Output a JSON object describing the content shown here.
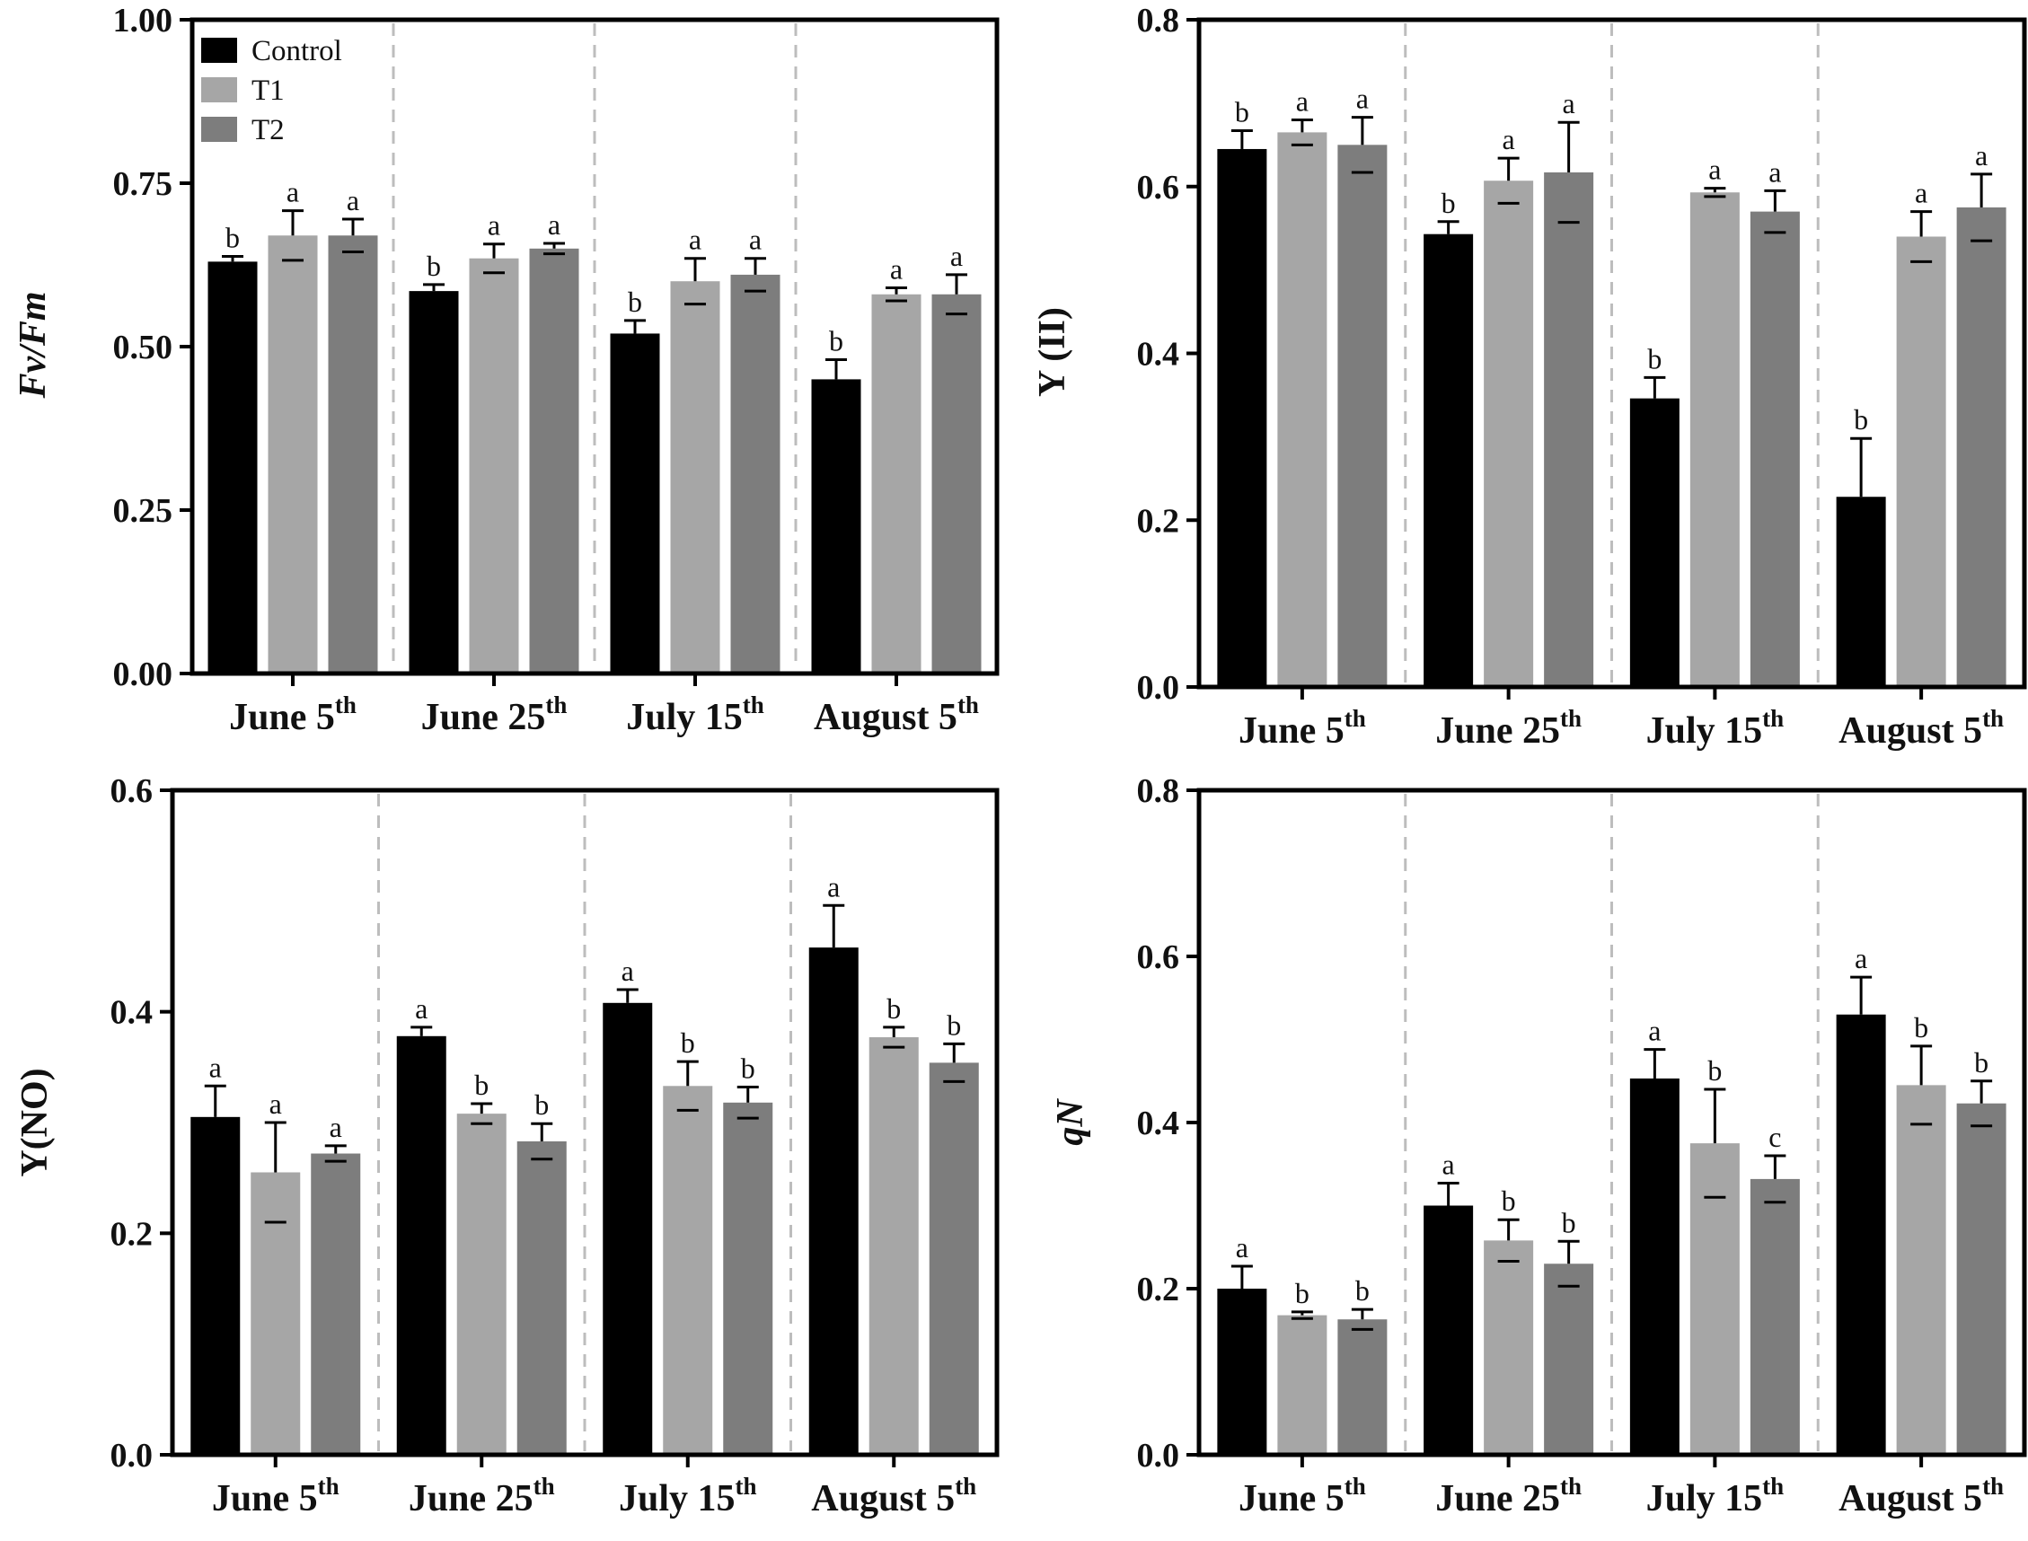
{
  "legend": {
    "entries": [
      {
        "name": "Control",
        "color": "#000000"
      },
      {
        "name": "T1",
        "color": "#a6a6a6"
      },
      {
        "name": "T2",
        "color": "#7d7d7d"
      }
    ]
  },
  "chart_data": [
    {
      "type": "bar",
      "ylabel": "Fv/Fm",
      "ylabel_italic": true,
      "ylim": [
        0,
        1.0
      ],
      "yticks": [
        "0.00",
        "0.25",
        "0.50",
        "0.75",
        "1.00"
      ],
      "categories": [
        {
          "main": "June 5",
          "sup": "th"
        },
        {
          "main": "June 25",
          "sup": "th"
        },
        {
          "main": "July 15",
          "sup": "th"
        },
        {
          "main": "August 5",
          "sup": "th"
        }
      ],
      "show_legend": true,
      "series": [
        {
          "name": "Control",
          "values": [
            0.63,
            0.585,
            0.52,
            0.45
          ],
          "errors": [
            0.008,
            0.01,
            0.02,
            0.03
          ],
          "letters": [
            "b",
            "b",
            "b",
            "b"
          ]
        },
        {
          "name": "T1",
          "values": [
            0.67,
            0.635,
            0.6,
            0.58
          ],
          "errors": [
            0.038,
            0.022,
            0.035,
            0.01
          ],
          "letters": [
            "a",
            "a",
            "a",
            "a"
          ]
        },
        {
          "name": "T2",
          "values": [
            0.67,
            0.65,
            0.61,
            0.58
          ],
          "errors": [
            0.025,
            0.008,
            0.025,
            0.03
          ],
          "letters": [
            "a",
            "a",
            "a",
            "a"
          ]
        }
      ]
    },
    {
      "type": "bar",
      "ylabel": "Y (II)",
      "ylabel_italic": false,
      "ylim": [
        0,
        0.8
      ],
      "yticks": [
        "0.0",
        "0.2",
        "0.4",
        "0.6",
        "0.8"
      ],
      "categories": [
        {
          "main": "June 5",
          "sup": "th"
        },
        {
          "main": "June 25",
          "sup": "th"
        },
        {
          "main": "July 15",
          "sup": "th"
        },
        {
          "main": "August 5",
          "sup": "th"
        }
      ],
      "show_legend": false,
      "series": [
        {
          "name": "Control",
          "values": [
            0.645,
            0.543,
            0.346,
            0.228
          ],
          "errors": [
            0.022,
            0.015,
            0.025,
            0.07
          ],
          "letters": [
            "b",
            "b",
            "b",
            "b"
          ]
        },
        {
          "name": "T1",
          "values": [
            0.665,
            0.607,
            0.593,
            0.54
          ],
          "errors": [
            0.015,
            0.027,
            0.005,
            0.03
          ],
          "letters": [
            "a",
            "a",
            "a",
            "a"
          ]
        },
        {
          "name": "T2",
          "values": [
            0.65,
            0.617,
            0.57,
            0.575
          ],
          "errors": [
            0.033,
            0.06,
            0.025,
            0.04
          ],
          "letters": [
            "a",
            "a",
            "a",
            "a"
          ]
        }
      ]
    },
    {
      "type": "bar",
      "ylabel": "Y(NO)",
      "ylabel_italic": false,
      "ylim": [
        0,
        0.6
      ],
      "yticks": [
        "0.0",
        "0.2",
        "0.4",
        "0.6"
      ],
      "categories": [
        {
          "main": "June 5",
          "sup": "th"
        },
        {
          "main": "June 25",
          "sup": "th"
        },
        {
          "main": "July 15",
          "sup": "th"
        },
        {
          "main": "August 5",
          "sup": "th"
        }
      ],
      "show_legend": false,
      "series": [
        {
          "name": "Control",
          "values": [
            0.305,
            0.378,
            0.408,
            0.458
          ],
          "errors": [
            0.028,
            0.008,
            0.012,
            0.038
          ],
          "letters": [
            "a",
            "a",
            "a",
            "a"
          ]
        },
        {
          "name": "T1",
          "values": [
            0.255,
            0.308,
            0.333,
            0.377
          ],
          "errors": [
            0.045,
            0.009,
            0.022,
            0.009
          ],
          "letters": [
            "a",
            "b",
            "b",
            "b"
          ]
        },
        {
          "name": "T2",
          "values": [
            0.272,
            0.283,
            0.318,
            0.354
          ],
          "errors": [
            0.007,
            0.016,
            0.014,
            0.017
          ],
          "letters": [
            "a",
            "b",
            "b",
            "b"
          ]
        }
      ]
    },
    {
      "type": "bar",
      "ylabel": "qN",
      "ylabel_italic": true,
      "ylim": [
        0,
        0.8
      ],
      "yticks": [
        "0.0",
        "0.2",
        "0.4",
        "0.6",
        "0.8"
      ],
      "categories": [
        {
          "main": "June 5",
          "sup": "th"
        },
        {
          "main": "June 25",
          "sup": "th"
        },
        {
          "main": "July 15",
          "sup": "th"
        },
        {
          "main": "August 5",
          "sup": "th"
        }
      ],
      "show_legend": false,
      "series": [
        {
          "name": "Control",
          "values": [
            0.2,
            0.3,
            0.453,
            0.53
          ],
          "errors": [
            0.027,
            0.027,
            0.035,
            0.045
          ],
          "letters": [
            "a",
            "a",
            "a",
            "a"
          ]
        },
        {
          "name": "T1",
          "values": [
            0.168,
            0.258,
            0.375,
            0.445
          ],
          "errors": [
            0.004,
            0.025,
            0.065,
            0.047
          ],
          "letters": [
            "b",
            "b",
            "b",
            "b"
          ]
        },
        {
          "name": "T2",
          "values": [
            0.163,
            0.23,
            0.332,
            0.423
          ],
          "errors": [
            0.012,
            0.027,
            0.028,
            0.027
          ],
          "letters": [
            "b",
            "b",
            "c",
            "b"
          ]
        }
      ]
    }
  ]
}
